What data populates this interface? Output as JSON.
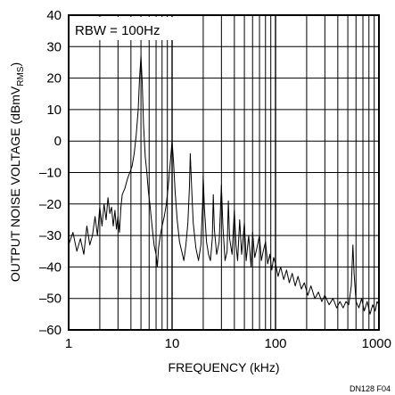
{
  "chart_data": {
    "type": "line",
    "xscale": "log",
    "xlim": [
      1,
      1000
    ],
    "ylim": [
      -60,
      40
    ],
    "grid": true,
    "xlabel": "FREQUENCY (kHz)",
    "ylabel_main": "OUTPUT NOISE VOLTAGE (dBmV",
    "ylabel_sub": "RMS",
    "ylabel_end": ")",
    "annotation": "RBW = 100Hz",
    "figure_id": "DN128 F04",
    "x_ticks": [
      {
        "value": 1,
        "label": "1"
      },
      {
        "value": 10,
        "label": "10"
      },
      {
        "value": 100,
        "label": "100"
      },
      {
        "value": 1000,
        "label": "1000"
      }
    ],
    "y_ticks": [
      {
        "value": 40,
        "label": "40"
      },
      {
        "value": 30,
        "label": "30"
      },
      {
        "value": 20,
        "label": "20"
      },
      {
        "value": 10,
        "label": "10"
      },
      {
        "value": 0,
        "label": "0"
      },
      {
        "value": -10,
        "label": "–10"
      },
      {
        "value": -20,
        "label": "–20"
      },
      {
        "value": -30,
        "label": "–30"
      },
      {
        "value": -40,
        "label": "–40"
      },
      {
        "value": -50,
        "label": "–50"
      },
      {
        "value": -60,
        "label": "–60"
      }
    ],
    "series": [
      {
        "color": "#000000",
        "points": [
          [
            1.0,
            -33
          ],
          [
            1.1,
            -29
          ],
          [
            1.2,
            -35
          ],
          [
            1.3,
            -31
          ],
          [
            1.4,
            -36
          ],
          [
            1.5,
            -27
          ],
          [
            1.6,
            -33
          ],
          [
            1.7,
            -30
          ],
          [
            1.8,
            -24
          ],
          [
            1.9,
            -30
          ],
          [
            2.0,
            -21
          ],
          [
            2.1,
            -27
          ],
          [
            2.2,
            -20
          ],
          [
            2.3,
            -25
          ],
          [
            2.4,
            -18
          ],
          [
            2.5,
            -23
          ],
          [
            2.6,
            -21
          ],
          [
            2.7,
            -27
          ],
          [
            2.8,
            -22
          ],
          [
            2.9,
            -28
          ],
          [
            3.0,
            -24
          ],
          [
            3.1,
            -29
          ],
          [
            3.2,
            -21
          ],
          [
            3.3,
            -17
          ],
          [
            3.5,
            -15
          ],
          [
            3.7,
            -12
          ],
          [
            3.9,
            -10
          ],
          [
            4.1,
            -8
          ],
          [
            4.3,
            -4
          ],
          [
            4.5,
            2
          ],
          [
            4.7,
            10
          ],
          [
            4.85,
            20
          ],
          [
            5.0,
            27
          ],
          [
            5.15,
            18
          ],
          [
            5.3,
            5
          ],
          [
            5.5,
            -5
          ],
          [
            5.7,
            -10
          ],
          [
            5.9,
            -16
          ],
          [
            6.1,
            -20
          ],
          [
            6.4,
            -27
          ],
          [
            6.7,
            -33
          ],
          [
            7.0,
            -36
          ],
          [
            7.2,
            -40
          ],
          [
            7.4,
            -34
          ],
          [
            7.7,
            -30
          ],
          [
            8.0,
            -27
          ],
          [
            8.4,
            -24
          ],
          [
            8.8,
            -20
          ],
          [
            9.2,
            -14
          ],
          [
            9.6,
            -7
          ],
          [
            10.0,
            0
          ],
          [
            10.3,
            -6
          ],
          [
            10.7,
            -16
          ],
          [
            11.2,
            -25
          ],
          [
            11.8,
            -32
          ],
          [
            12.4,
            -35
          ],
          [
            13.0,
            -38
          ],
          [
            13.6,
            -33
          ],
          [
            14.2,
            -26
          ],
          [
            14.7,
            -15
          ],
          [
            15.0,
            -4
          ],
          [
            15.4,
            -14
          ],
          [
            16.0,
            -26
          ],
          [
            17.0,
            -34
          ],
          [
            18.0,
            -38
          ],
          [
            19.0,
            -33
          ],
          [
            19.7,
            -20
          ],
          [
            20.0,
            -11
          ],
          [
            20.5,
            -21
          ],
          [
            21.5,
            -32
          ],
          [
            22.5,
            -36
          ],
          [
            23.5,
            -38
          ],
          [
            24.5,
            -31
          ],
          [
            25.0,
            -17
          ],
          [
            25.6,
            -28
          ],
          [
            27.0,
            -36
          ],
          [
            28.5,
            -32
          ],
          [
            30.0,
            -14
          ],
          [
            31.0,
            -27
          ],
          [
            32.5,
            -38
          ],
          [
            34.0,
            -35
          ],
          [
            35.0,
            -19
          ],
          [
            36.0,
            -31
          ],
          [
            38.0,
            -36
          ],
          [
            40.0,
            -22
          ],
          [
            41.5,
            -33
          ],
          [
            43.0,
            -38
          ],
          [
            45.0,
            -25
          ],
          [
            47.0,
            -36
          ],
          [
            50.0,
            -26
          ],
          [
            52.0,
            -38
          ],
          [
            55.0,
            -30
          ],
          [
            58.0,
            -40
          ],
          [
            60.0,
            -29
          ],
          [
            63.0,
            -37
          ],
          [
            66.0,
            -34
          ],
          [
            70.0,
            -30
          ],
          [
            73.0,
            -38
          ],
          [
            76.0,
            -35
          ],
          [
            80.0,
            -32
          ],
          [
            84.0,
            -39
          ],
          [
            88.0,
            -36
          ],
          [
            92.0,
            -41
          ],
          [
            96.0,
            -37
          ],
          [
            100.0,
            -39
          ],
          [
            106.0,
            -43
          ],
          [
            112.0,
            -40
          ],
          [
            120.0,
            -44
          ],
          [
            128.0,
            -41
          ],
          [
            136.0,
            -45
          ],
          [
            145.0,
            -42
          ],
          [
            155.0,
            -46
          ],
          [
            165.0,
            -43
          ],
          [
            178.0,
            -47
          ],
          [
            190.0,
            -45
          ],
          [
            205.0,
            -49
          ],
          [
            220.0,
            -46
          ],
          [
            240.0,
            -50
          ],
          [
            260.0,
            -48
          ],
          [
            280.0,
            -51
          ],
          [
            300.0,
            -49
          ],
          [
            330.0,
            -52
          ],
          [
            360.0,
            -50
          ],
          [
            390.0,
            -53
          ],
          [
            420.0,
            -51
          ],
          [
            450.0,
            -53
          ],
          [
            480.0,
            -51
          ],
          [
            510.0,
            -52
          ],
          [
            540.0,
            -46
          ],
          [
            560.0,
            -33
          ],
          [
            575.0,
            -42
          ],
          [
            600.0,
            -51
          ],
          [
            640.0,
            -53
          ],
          [
            680.0,
            -50
          ],
          [
            720.0,
            -54
          ],
          [
            770.0,
            -51
          ],
          [
            820.0,
            -55
          ],
          [
            870.0,
            -52
          ],
          [
            920.0,
            -54
          ],
          [
            960.0,
            -51
          ],
          [
            1000.0,
            -52
          ]
        ]
      }
    ]
  }
}
